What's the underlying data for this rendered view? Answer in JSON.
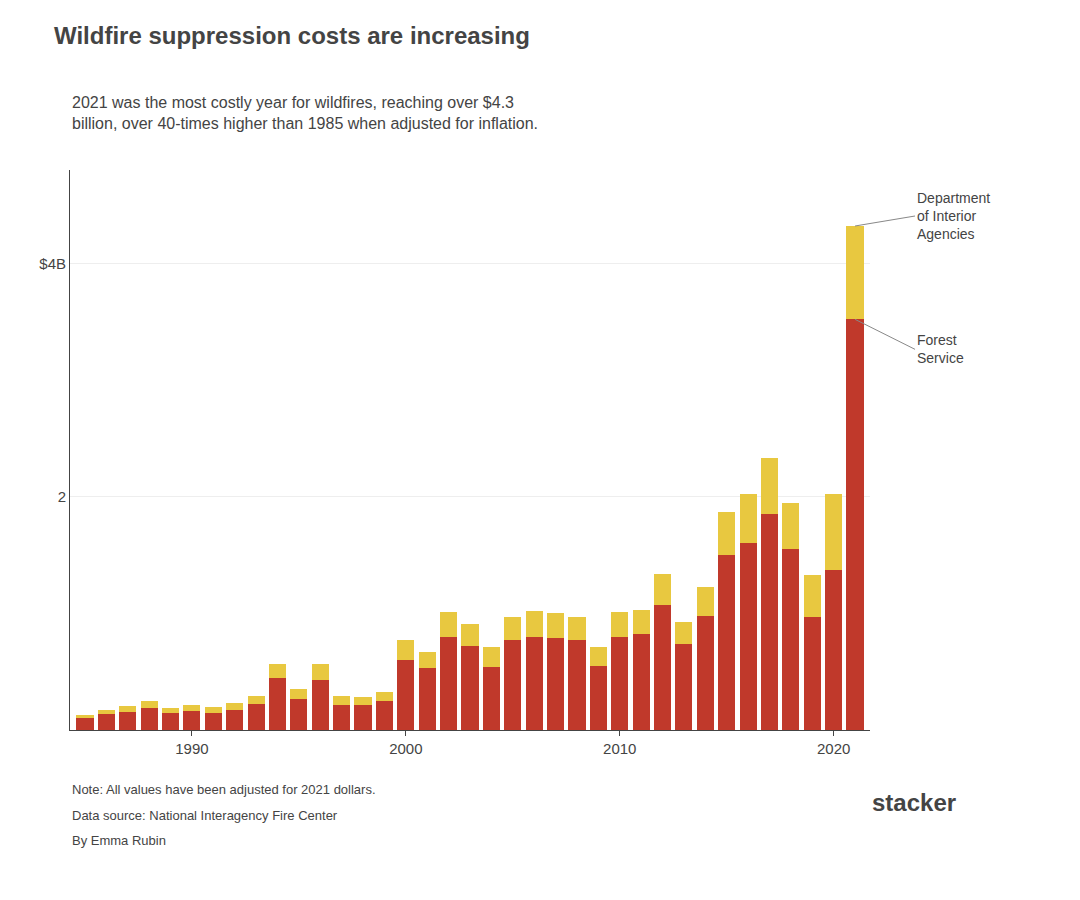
{
  "chart_data": {
    "type": "bar",
    "title": "Wildfire suppression costs are increasing",
    "subtitle": "2021 was the most costly year for wildfires, reaching over $4.3\nbillion, over 40-times higher than 1985 when adjusted for inflation.",
    "annotations": [
      "Note: All values have been adjusted for 2021 dollars.",
      "Data source: National Interagency Fire Center",
      "By Emma Rubin",
      "stacker"
    ],
    "x": [
      1985,
      1986,
      1987,
      1988,
      1989,
      1990,
      1991,
      1992,
      1993,
      1994,
      1995,
      1996,
      1997,
      1998,
      1999,
      2000,
      2001,
      2002,
      2003,
      2004,
      2005,
      2006,
      2007,
      2008,
      2009,
      2010,
      2011,
      2012,
      2013,
      2014,
      2015,
      2016,
      2017,
      2018,
      2019,
      2020,
      2021
    ],
    "series": [
      {
        "name": "Forest\nService",
        "color": "#C0392B",
        "values": [
          0.1,
          0.135,
          0.155,
          0.19,
          0.145,
          0.165,
          0.145,
          0.175,
          0.22,
          0.45,
          0.265,
          0.43,
          0.215,
          0.215,
          0.245,
          0.6,
          0.53,
          0.8,
          0.72,
          0.54,
          0.77,
          0.8,
          0.79,
          0.77,
          0.55,
          0.8,
          0.82,
          1.07,
          0.74,
          0.98,
          1.5,
          1.6,
          1.85,
          1.55,
          0.97,
          1.37,
          3.52
        ]
      },
      {
        "name": "Department\nof Interior\nAgencies",
        "color": "#E8C840",
        "values": [
          0.025,
          0.04,
          0.05,
          0.06,
          0.045,
          0.05,
          0.048,
          0.06,
          0.07,
          0.12,
          0.085,
          0.14,
          0.075,
          0.07,
          0.08,
          0.17,
          0.14,
          0.21,
          0.19,
          0.17,
          0.2,
          0.22,
          0.21,
          0.2,
          0.16,
          0.21,
          0.21,
          0.27,
          0.19,
          0.25,
          0.37,
          0.42,
          0.48,
          0.4,
          0.36,
          0.65,
          0.8
        ]
      }
    ],
    "stacked": true,
    "xlim": [
      1984.3,
      2021.7
    ],
    "xticks": [
      1990,
      2000,
      2010,
      2020
    ],
    "ylim": [
      0,
      4.8
    ],
    "yticks": [
      2,
      {
        "value": 4,
        "label": "$4B"
      }
    ],
    "grid": true
  }
}
